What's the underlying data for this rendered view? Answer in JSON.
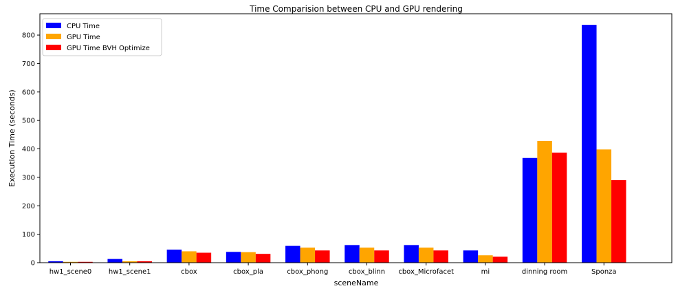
{
  "chart_data": {
    "type": "bar",
    "title": "Time Comparision between CPU and GPU rendering",
    "xlabel": "sceneName",
    "ylabel": "Execution Time (seconds)",
    "categories": [
      "hw1_scene0",
      "hw1_scene1",
      "cbox",
      "cbox_pla",
      "cbox_phong",
      "cbox_blinn",
      "cbox_Microfacet",
      "mi",
      "dinning room",
      "Sponza"
    ],
    "series": [
      {
        "name": "CPU Time",
        "color": "#0000ff",
        "values": [
          5,
          13,
          46,
          38,
          59,
          62,
          62,
          43,
          368,
          836
        ]
      },
      {
        "name": "GPU Time",
        "color": "#ffa500",
        "values": [
          3,
          5,
          40,
          37,
          53,
          53,
          53,
          26,
          428,
          398
        ]
      },
      {
        "name": "GPU Time BVH Optimize",
        "color": "#ff0000",
        "values": [
          3,
          5,
          35,
          31,
          43,
          43,
          43,
          21,
          387,
          290
        ]
      }
    ],
    "yticks": [
      0,
      100,
      200,
      300,
      400,
      500,
      600,
      700,
      800
    ],
    "ylim": [
      0,
      875
    ],
    "grid": false,
    "legend_position": "top-left"
  }
}
